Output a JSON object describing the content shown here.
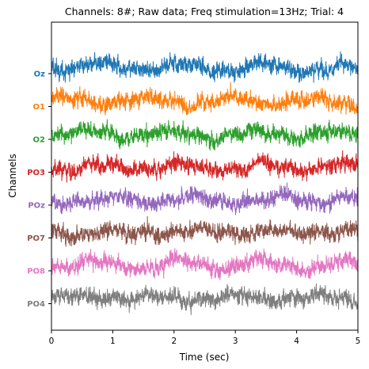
{
  "chart_data": {
    "type": "line",
    "title": "Channels: 8#; Raw data; Freq stimulation=13Hz; Trial: 4",
    "xlabel": "Time (sec)",
    "ylabel": "Channels",
    "xlim": [
      0,
      5
    ],
    "x_ticks": [
      "0",
      "1",
      "2",
      "3",
      "4",
      "5"
    ],
    "grid": false,
    "legend": "none",
    "stimulation_frequency_hz": 13,
    "series": [
      {
        "name": "Oz",
        "color": "#1f77b4"
      },
      {
        "name": "O1",
        "color": "#ff7f0e"
      },
      {
        "name": "O2",
        "color": "#2ca02c"
      },
      {
        "name": "PO3",
        "color": "#d62728"
      },
      {
        "name": "POz",
        "color": "#9467bd"
      },
      {
        "name": "PO7",
        "color": "#8c564b"
      },
      {
        "name": "PO8",
        "color": "#e377c2"
      },
      {
        "name": "PO4",
        "color": "#7f7f7f"
      }
    ]
  }
}
